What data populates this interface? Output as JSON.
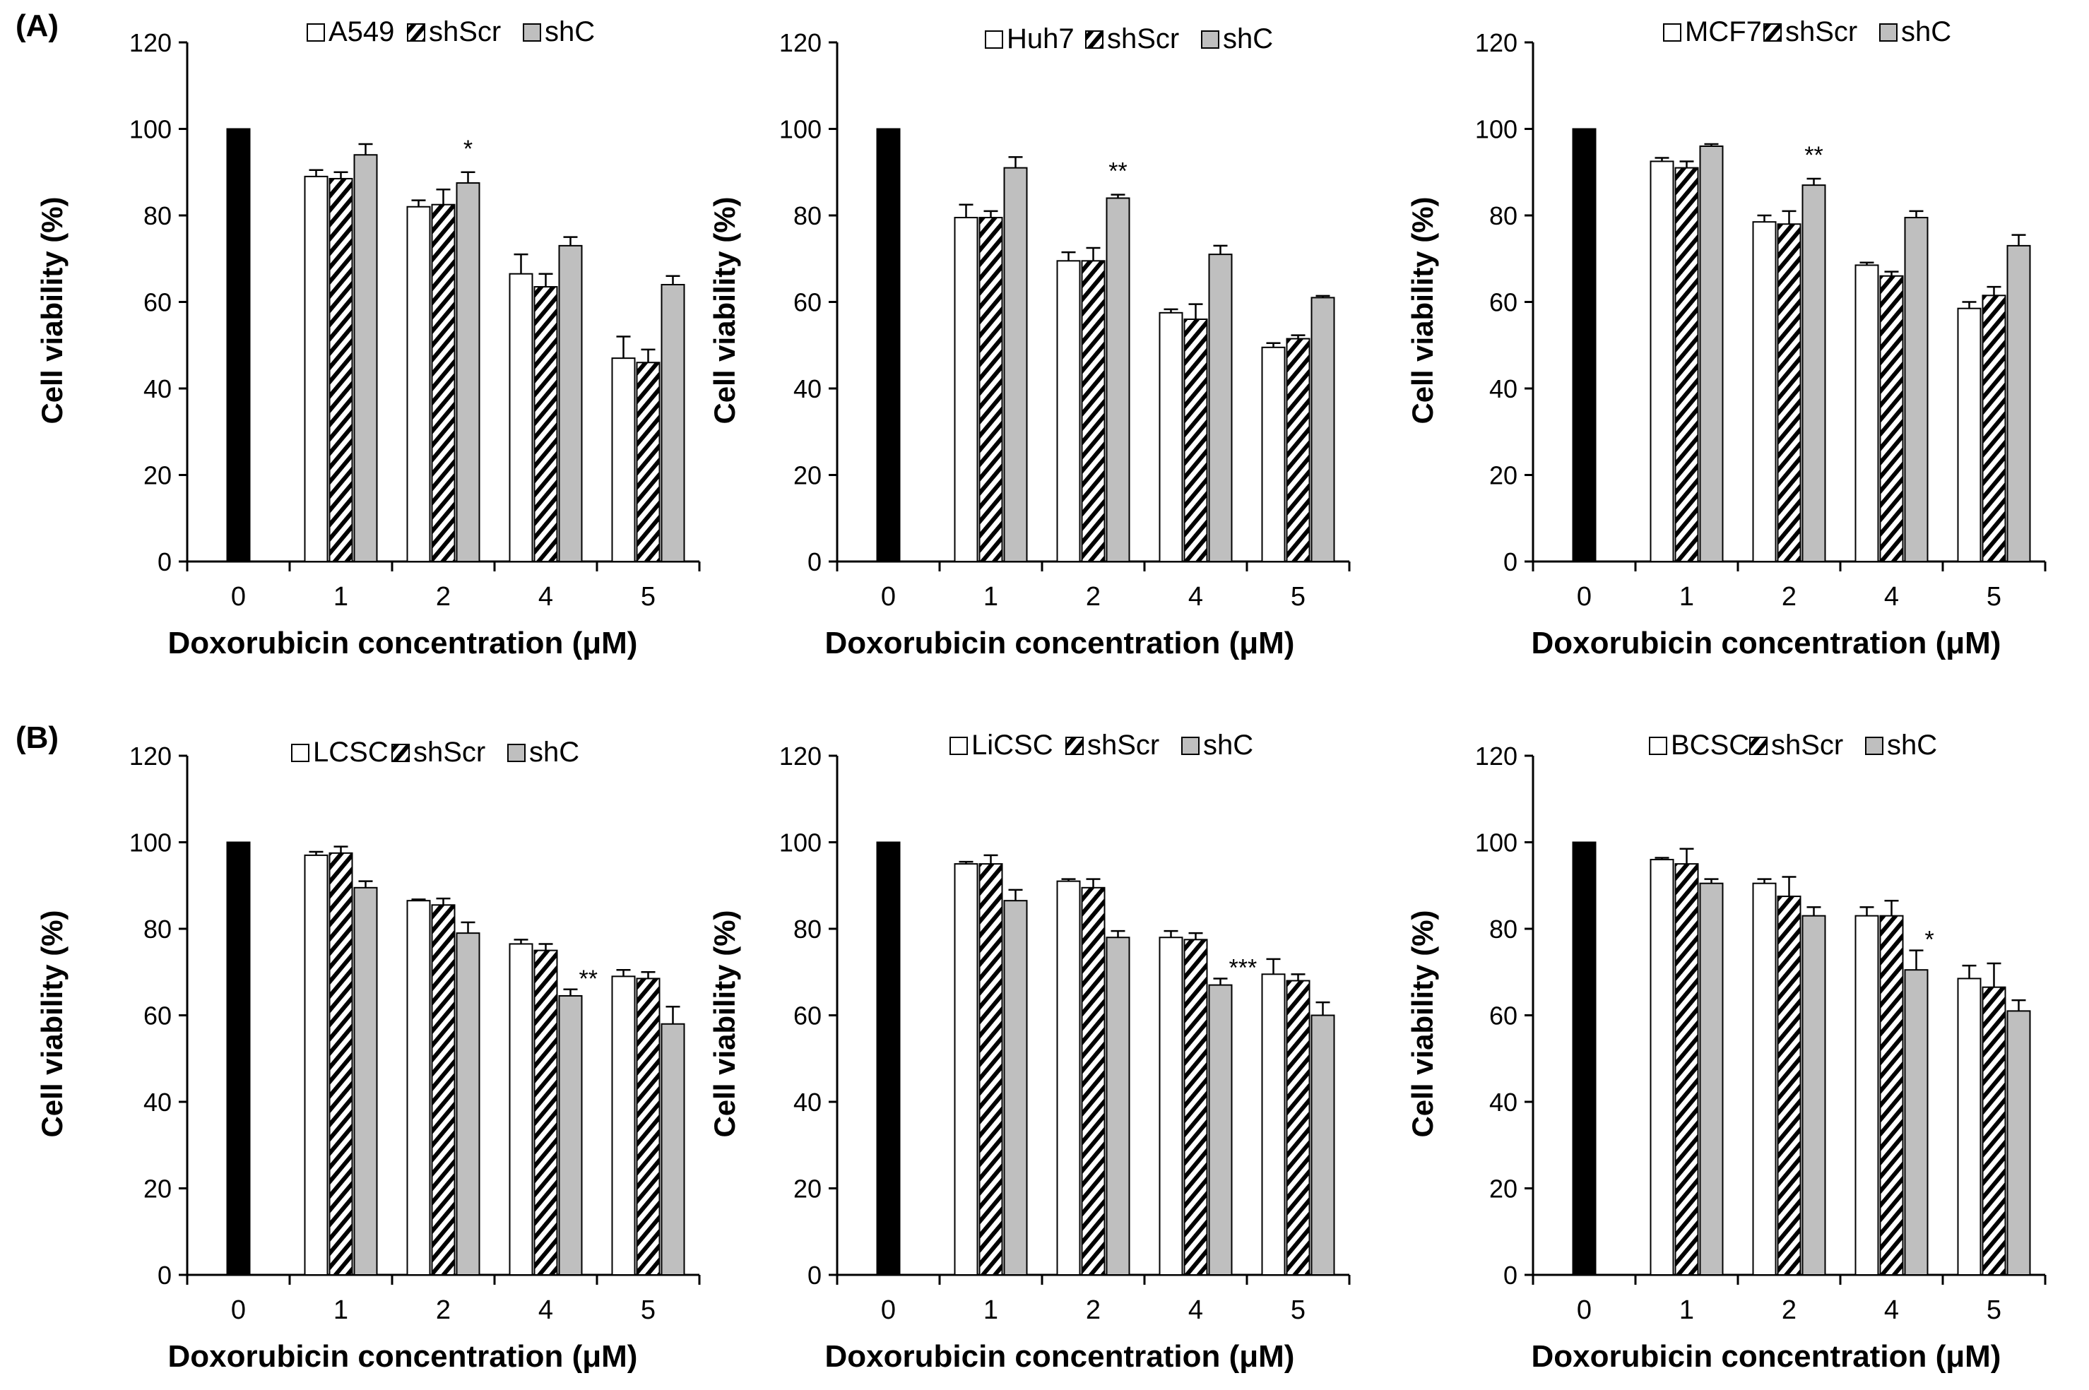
{
  "figure": {
    "panel_labels": [
      "(A)",
      "(B)"
    ]
  },
  "colors": {
    "control": "#000000",
    "parental_fill": "#ffffff",
    "shscr_stripe": "#000000",
    "shc_fill": "#bfbfbf",
    "axis": "#000000"
  },
  "chart_data": [
    {
      "type": "bar",
      "panel": "(A)",
      "categories": [
        "0",
        "1",
        "2",
        "4",
        "5"
      ],
      "control": {
        "category": "0",
        "value": 100
      },
      "series": [
        {
          "name": "A549",
          "style": "parental",
          "values": [
            null,
            89,
            82,
            66.5,
            47
          ],
          "errors": [
            null,
            1.5,
            1.5,
            4.5,
            5
          ]
        },
        {
          "name": "shScr",
          "style": "shscr",
          "values": [
            null,
            88.5,
            82.5,
            63.5,
            46
          ],
          "errors": [
            null,
            1.5,
            3.5,
            3,
            3
          ]
        },
        {
          "name": "shC",
          "style": "shc",
          "values": [
            null,
            94,
            87.5,
            73,
            64
          ],
          "errors": [
            null,
            2.5,
            2.5,
            2,
            2
          ]
        }
      ],
      "significance": [
        {
          "category": "2",
          "label": "*"
        }
      ],
      "xlabel": "Doxorubicin concentration (μM)",
      "ylabel": "Cell viability (%)",
      "ylim": [
        0,
        120
      ],
      "yticks": [
        "0",
        "20",
        "40",
        "60",
        "80",
        "100",
        "120"
      ]
    },
    {
      "type": "bar",
      "panel": "(A)",
      "categories": [
        "0",
        "1",
        "2",
        "4",
        "5"
      ],
      "control": {
        "category": "0",
        "value": 100
      },
      "series": [
        {
          "name": "Huh7",
          "style": "parental",
          "values": [
            null,
            79.5,
            69.5,
            57.5,
            49.5
          ],
          "errors": [
            null,
            3,
            2,
            0.8,
            1
          ]
        },
        {
          "name": "shScr",
          "style": "shscr",
          "values": [
            null,
            79.5,
            69.5,
            56,
            51.5
          ],
          "errors": [
            null,
            1.5,
            3,
            3.5,
            0.8
          ]
        },
        {
          "name": "shC",
          "style": "shc",
          "values": [
            null,
            91,
            84,
            71,
            61
          ],
          "errors": [
            null,
            2.5,
            0.8,
            2,
            0.4
          ]
        }
      ],
      "significance": [
        {
          "category": "2",
          "label": "**"
        }
      ],
      "xlabel": "Doxorubicin concentration (μM)",
      "ylabel": "Cell viability (%)",
      "ylim": [
        0,
        120
      ],
      "yticks": [
        "0",
        "20",
        "40",
        "60",
        "80",
        "100",
        "120"
      ]
    },
    {
      "type": "bar",
      "panel": "(A)",
      "categories": [
        "0",
        "1",
        "2",
        "4",
        "5"
      ],
      "control": {
        "category": "0",
        "value": 100
      },
      "series": [
        {
          "name": "MCF7",
          "style": "parental",
          "values": [
            null,
            92.5,
            78.5,
            68.5,
            58.5
          ],
          "errors": [
            null,
            0.8,
            1.5,
            0.6,
            1.5
          ]
        },
        {
          "name": "shScr",
          "style": "shscr",
          "values": [
            null,
            91,
            78,
            66,
            61.5
          ],
          "errors": [
            null,
            1.5,
            3,
            1,
            2
          ]
        },
        {
          "name": "shC",
          "style": "shc",
          "values": [
            null,
            96,
            87,
            79.5,
            73
          ],
          "errors": [
            null,
            0.5,
            1.5,
            1.5,
            2.5
          ]
        }
      ],
      "significance": [
        {
          "category": "2",
          "label": "**"
        }
      ],
      "xlabel": "Doxorubicin concentration (μM)",
      "ylabel": "Cell viability (%)",
      "ylim": [
        0,
        120
      ],
      "yticks": [
        "0",
        "20",
        "40",
        "60",
        "80",
        "100",
        "120"
      ]
    },
    {
      "type": "bar",
      "panel": "(B)",
      "categories": [
        "0",
        "1",
        "2",
        "4",
        "5"
      ],
      "control": {
        "category": "0",
        "value": 100
      },
      "series": [
        {
          "name": "LCSC",
          "style": "parental",
          "values": [
            null,
            97,
            86.5,
            76.5,
            69
          ],
          "errors": [
            null,
            0.8,
            0.3,
            1,
            1.5
          ]
        },
        {
          "name": "shScr",
          "style": "shscr",
          "values": [
            null,
            97.5,
            85.5,
            75,
            68.5
          ],
          "errors": [
            null,
            1.5,
            1.5,
            1.5,
            1.5
          ]
        },
        {
          "name": "shC",
          "style": "shc",
          "values": [
            null,
            89.5,
            79,
            64.5,
            58
          ],
          "errors": [
            null,
            1.5,
            2.5,
            1.5,
            4
          ]
        }
      ],
      "significance": [
        {
          "category": "4",
          "label": "**"
        }
      ],
      "xlabel": "Doxorubicin concentration (μM)",
      "ylabel": "Cell viability (%)",
      "ylim": [
        0,
        120
      ],
      "yticks": [
        "0",
        "20",
        "40",
        "60",
        "80",
        "100",
        "120"
      ]
    },
    {
      "type": "bar",
      "panel": "(B)",
      "categories": [
        "0",
        "1",
        "2",
        "4",
        "5"
      ],
      "control": {
        "category": "0",
        "value": 100
      },
      "series": [
        {
          "name": "LiCSC",
          "style": "parental",
          "values": [
            null,
            95,
            91,
            78,
            69.5
          ],
          "errors": [
            null,
            0.5,
            0.5,
            1.5,
            3.5
          ]
        },
        {
          "name": "shScr",
          "style": "shscr",
          "values": [
            null,
            95,
            89.5,
            77.5,
            68
          ],
          "errors": [
            null,
            2,
            2,
            1.5,
            1.5
          ]
        },
        {
          "name": "shC",
          "style": "shc",
          "values": [
            null,
            86.5,
            78,
            67,
            60
          ],
          "errors": [
            null,
            2.5,
            1.5,
            1.5,
            3
          ]
        }
      ],
      "significance": [
        {
          "category": "4",
          "label": "***"
        }
      ],
      "xlabel": "Doxorubicin concentration (μM)",
      "ylabel": "Cell viability (%)",
      "ylim": [
        0,
        120
      ],
      "yticks": [
        "0",
        "20",
        "40",
        "60",
        "80",
        "100",
        "120"
      ]
    },
    {
      "type": "bar",
      "panel": "(B)",
      "categories": [
        "0",
        "1",
        "2",
        "4",
        "5"
      ],
      "control": {
        "category": "0",
        "value": 100
      },
      "series": [
        {
          "name": "BCSC",
          "style": "parental",
          "values": [
            null,
            96,
            90.5,
            83,
            68.5
          ],
          "errors": [
            null,
            0.4,
            1,
            2,
            3
          ]
        },
        {
          "name": "shScr",
          "style": "shscr",
          "values": [
            null,
            95,
            87.5,
            83,
            66.5
          ],
          "errors": [
            null,
            3.5,
            4.5,
            3.5,
            5.5
          ]
        },
        {
          "name": "shC",
          "style": "shc",
          "values": [
            null,
            90.5,
            83,
            70.5,
            61
          ],
          "errors": [
            null,
            1,
            2,
            4.5,
            2.5
          ]
        }
      ],
      "significance": [
        {
          "category": "4",
          "label": "*"
        }
      ],
      "xlabel": "Doxorubicin concentration (μM)",
      "ylabel": "Cell viability (%)",
      "ylim": [
        0,
        120
      ],
      "yticks": [
        "0",
        "20",
        "40",
        "60",
        "80",
        "100",
        "120"
      ]
    }
  ]
}
